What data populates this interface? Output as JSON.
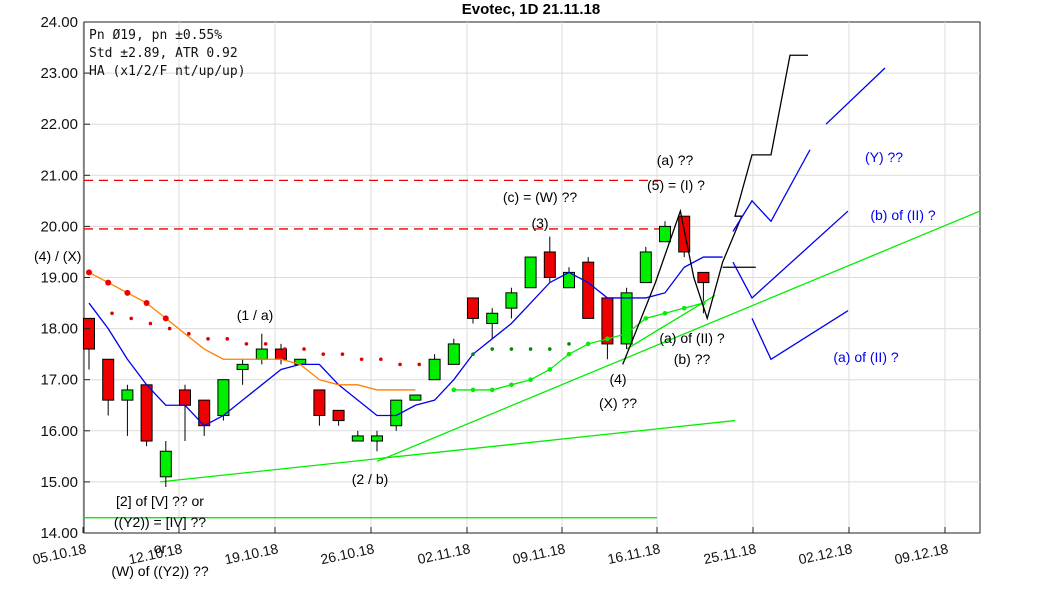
{
  "chart_data": {
    "type": "candlestick",
    "title": "Evotec, 1D 21.11.18",
    "ylim": [
      14.0,
      24.0
    ],
    "y_ticks": [
      "14.00",
      "15.00",
      "16.00",
      "17.00",
      "18.00",
      "19.00",
      "20.00",
      "21.00",
      "22.00",
      "23.00",
      "24.00"
    ],
    "x_ticks": [
      "05.10.18",
      "12.10.18",
      "19.10.18",
      "26.10.18",
      "02.11.18",
      "09.11.18",
      "16.11.18",
      "25.11.18",
      "02.12.18",
      "09.12.18"
    ],
    "info_lines": [
      "Pn  Ø19, pn ±0.55%",
      "Std ±2.89, ATR 0.92",
      "HA (x1/2/F nt/up/up)"
    ],
    "colors": {
      "up": "#00ee00",
      "down": "#ee0000",
      "blue": "#0000ee",
      "orange": "#ff8000",
      "green_line": "#00ee00",
      "dashed_red": "#ee0000",
      "projection": "#000000"
    },
    "candles": [
      {
        "o": 18.2,
        "h": 18.2,
        "l": 17.2,
        "c": 17.6
      },
      {
        "o": 17.4,
        "h": 17.4,
        "l": 16.3,
        "c": 16.6
      },
      {
        "o": 16.6,
        "h": 16.9,
        "l": 15.9,
        "c": 16.8
      },
      {
        "o": 16.9,
        "h": 16.9,
        "l": 15.7,
        "c": 15.8
      },
      {
        "o": 15.1,
        "h": 15.8,
        "l": 14.9,
        "c": 15.6
      },
      {
        "o": 16.8,
        "h": 16.9,
        "l": 15.8,
        "c": 16.5
      },
      {
        "o": 16.6,
        "h": 16.6,
        "l": 15.9,
        "c": 16.1
      },
      {
        "o": 16.3,
        "h": 17.0,
        "l": 16.2,
        "c": 17.0
      },
      {
        "o": 17.2,
        "h": 17.4,
        "l": 16.9,
        "c": 17.3
      },
      {
        "o": 17.4,
        "h": 17.9,
        "l": 17.3,
        "c": 17.6
      },
      {
        "o": 17.6,
        "h": 17.7,
        "l": 17.3,
        "c": 17.4
      },
      {
        "o": 17.3,
        "h": 17.4,
        "l": 17.3,
        "c": 17.4
      },
      {
        "o": 16.8,
        "h": 16.8,
        "l": 16.1,
        "c": 16.3
      },
      {
        "o": 16.4,
        "h": 16.4,
        "l": 16.1,
        "c": 16.2
      },
      {
        "o": 15.8,
        "h": 16.0,
        "l": 15.8,
        "c": 15.9
      },
      {
        "o": 15.8,
        "h": 16.0,
        "l": 15.6,
        "c": 15.9
      },
      {
        "o": 16.1,
        "h": 16.6,
        "l": 16.0,
        "c": 16.6
      },
      {
        "o": 16.6,
        "h": 16.7,
        "l": 16.6,
        "c": 16.7
      },
      {
        "o": 17.0,
        "h": 17.5,
        "l": 17.0,
        "c": 17.4
      },
      {
        "o": 17.3,
        "h": 17.8,
        "l": 17.3,
        "c": 17.7
      },
      {
        "o": 18.6,
        "h": 18.6,
        "l": 18.1,
        "c": 18.2
      },
      {
        "o": 18.1,
        "h": 18.4,
        "l": 17.8,
        "c": 18.3
      },
      {
        "o": 18.4,
        "h": 18.8,
        "l": 18.2,
        "c": 18.7
      },
      {
        "o": 18.8,
        "h": 19.4,
        "l": 18.8,
        "c": 19.4
      },
      {
        "o": 19.5,
        "h": 19.8,
        "l": 18.9,
        "c": 19.0
      },
      {
        "o": 18.8,
        "h": 19.2,
        "l": 18.8,
        "c": 19.1
      },
      {
        "o": 19.3,
        "h": 19.4,
        "l": 18.2,
        "c": 18.2
      },
      {
        "o": 18.6,
        "h": 18.6,
        "l": 17.4,
        "c": 17.7
      },
      {
        "o": 17.7,
        "h": 18.8,
        "l": 17.6,
        "c": 18.7
      },
      {
        "o": 18.9,
        "h": 19.6,
        "l": 18.9,
        "c": 19.5
      },
      {
        "o": 19.7,
        "h": 20.1,
        "l": 19.7,
        "c": 20.0
      },
      {
        "o": 20.2,
        "h": 20.2,
        "l": 19.4,
        "c": 19.5
      },
      {
        "o": 19.1,
        "h": 19.1,
        "l": 18.3,
        "c": 18.9
      }
    ],
    "blue_line": [
      18.5,
      18.0,
      17.4,
      16.9,
      16.5,
      16.5,
      16.1,
      16.3,
      16.6,
      16.9,
      17.2,
      17.3,
      17.3,
      16.9,
      16.6,
      16.3,
      16.3,
      16.5,
      16.6,
      17.0,
      17.5,
      17.8,
      18.1,
      18.5,
      18.9,
      19.1,
      18.9,
      18.6,
      18.6,
      18.6,
      18.7,
      19.2,
      19.4,
      19.4
    ],
    "orange_line": [
      19.1,
      18.9,
      18.7,
      18.5,
      18.2,
      17.9,
      17.6,
      17.4,
      17.4,
      17.4,
      17.4,
      17.3,
      17.0,
      16.9,
      16.9,
      16.8,
      16.8,
      16.8
    ],
    "red_dots": [
      18.3,
      18.2,
      18.1,
      18.0,
      17.9,
      17.8,
      17.8,
      17.7,
      17.7,
      17.6,
      17.6,
      17.5,
      17.5,
      17.4,
      17.4,
      17.3,
      17.3
    ],
    "green_dots": [
      17.5,
      17.6,
      17.6,
      17.6,
      17.6,
      17.7,
      17.7
    ],
    "green_line_dots": [
      16.8,
      16.8,
      16.8,
      16.9,
      17.0,
      17.2,
      17.5,
      17.7,
      17.8,
      17.9,
      18.2,
      18.3,
      18.4,
      18.5
    ],
    "resistance_levels": [
      20.9,
      19.95
    ],
    "support_level": 14.3,
    "annotations": [
      "(4) / (X)",
      "(1 / a)",
      "(2 / b)",
      "[2] of [V] ?? or",
      "((Y2)) = [IV] ??",
      "or",
      "(W) of ((Y2)) ??",
      "(c) = (W) ??",
      "(3)",
      "(a) ??",
      "(5) = (I) ?",
      "(4)",
      "(X) ??",
      "(a) of (II) ?",
      "(b) ??",
      "(Y) ??",
      "(b) of (II) ?",
      "(a) of (II) ?"
    ]
  }
}
